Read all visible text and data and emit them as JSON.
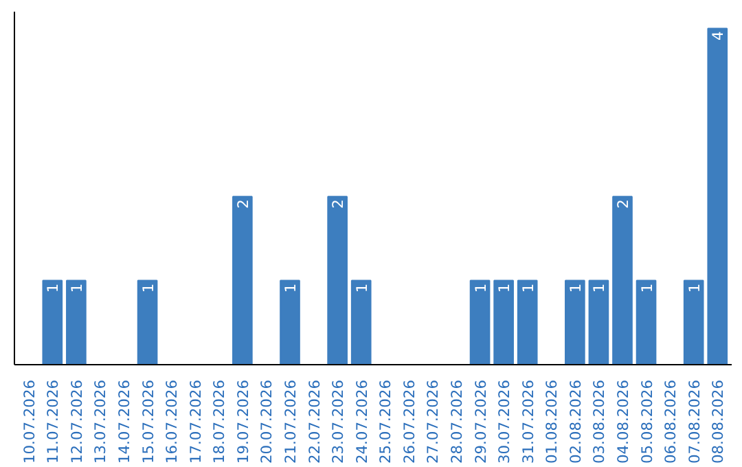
{
  "chart_data": {
    "type": "bar",
    "categories": [
      "10.07.2026",
      "11.07.2026",
      "12.07.2026",
      "13.07.2026",
      "14.07.2026",
      "15.07.2026",
      "16.07.2026",
      "17.07.2026",
      "18.07.2026",
      "19.07.2026",
      "20.07.2026",
      "21.07.2026",
      "22.07.2026",
      "23.07.2026",
      "24.07.2026",
      "25.07.2026",
      "26.07.2026",
      "27.07.2026",
      "28.07.2026",
      "29.07.2026",
      "30.07.2026",
      "31.07.2026",
      "01.08.2026",
      "02.08.2026",
      "03.08.2026",
      "04.08.2026",
      "05.08.2026",
      "06.08.2026",
      "07.08.2026",
      "08.08.2026"
    ],
    "values": [
      0,
      1,
      1,
      0,
      0,
      1,
      0,
      0,
      0,
      2,
      0,
      1,
      0,
      2,
      1,
      0,
      0,
      0,
      0,
      1,
      1,
      1,
      0,
      1,
      1,
      2,
      1,
      0,
      1,
      4
    ],
    "value_labels": [
      null,
      "1",
      "1",
      null,
      null,
      "1",
      null,
      null,
      null,
      "2",
      null,
      "1",
      null,
      "2",
      "1",
      null,
      null,
      null,
      null,
      "1",
      "1",
      "1",
      null,
      "1",
      "1",
      "2",
      "1",
      null,
      "1",
      "4"
    ],
    "color": "#3d7ebf",
    "grid": false,
    "tick_labels": "x"
  }
}
